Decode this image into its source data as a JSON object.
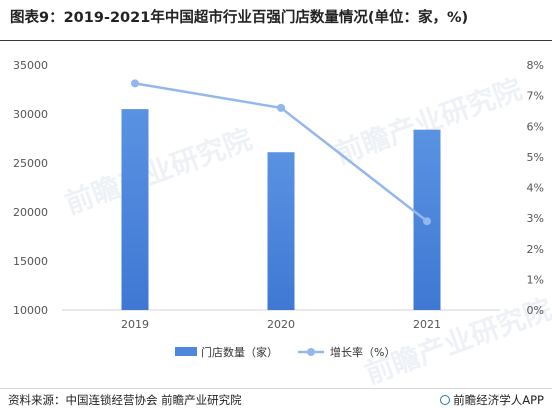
{
  "title": "图表9：2019-2021年中国超市行业百强门店数量情况(单位：家，%)",
  "chart_data": {
    "type": "bar",
    "categories": [
      "2019",
      "2020",
      "2021"
    ],
    "series": [
      {
        "name": "门店数量（家）",
        "type": "bar",
        "axis": "left",
        "values": [
          30500,
          26100,
          28400
        ],
        "color": "#4f87dd"
      },
      {
        "name": "增长率（%）",
        "type": "line",
        "axis": "right",
        "values": [
          7.4,
          6.6,
          2.9
        ],
        "color": "#94b8ec"
      }
    ],
    "y_left": {
      "min": 10000,
      "max": 35000,
      "ticks": [
        "35000",
        "30000",
        "25000",
        "20000",
        "15000",
        "10000"
      ]
    },
    "y_right": {
      "min": 0,
      "max": 8,
      "ticks": [
        "8%",
        "7%",
        "6%",
        "5%",
        "4%",
        "3%",
        "2%",
        "1%",
        "0%"
      ]
    },
    "grid": false,
    "legend_position": "bottom"
  },
  "watermark": "前瞻产业研究院",
  "source": "资料来源：中国连锁经营协会 前瞻产业研究院",
  "brand": "前瞻经济学人APP"
}
